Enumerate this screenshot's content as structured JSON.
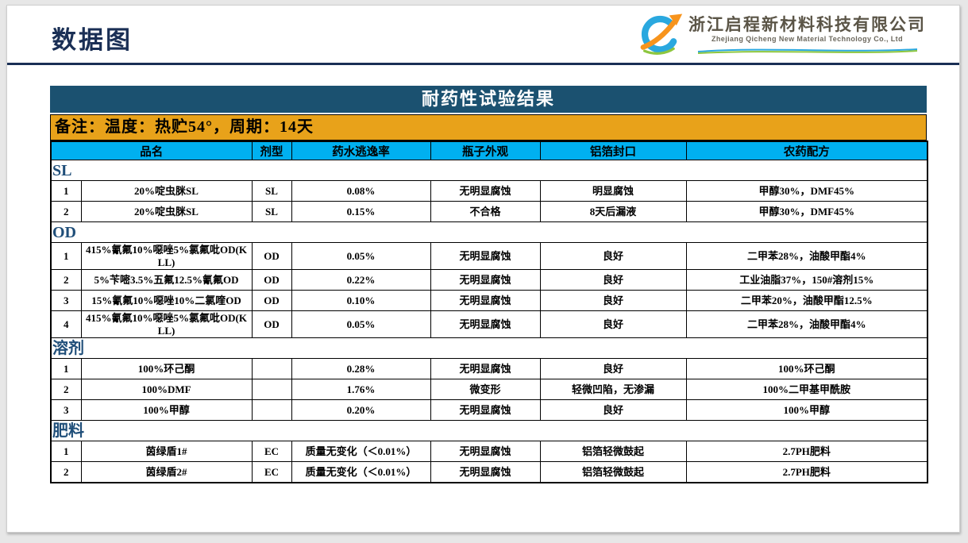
{
  "page": {
    "title": "数据图",
    "logo": {
      "icon": "qicheng-q-swoosh-logo",
      "company_cn": "浙江启程新材料科技有限公司",
      "company_en": "Zhejiang Qicheng New Material Technology Co., Ltd"
    }
  },
  "banner": {
    "title": "耐药性试验结果"
  },
  "note": {
    "text": "备注：温度：热贮54°，周期：14天"
  },
  "table": {
    "headers": [
      "品名",
      "剂型",
      "药水逃逸率",
      "瓶子外观",
      "铝箔封口",
      "农药配方"
    ],
    "sections": [
      {
        "label": "SL",
        "rows": [
          {
            "no": "1",
            "name": "20%啶虫脒SL",
            "type": "SL",
            "escape": "0.08%",
            "bottle": "无明显腐蚀",
            "seal": "明显腐蚀",
            "formula": "甲醇30%，DMF45%"
          },
          {
            "no": "2",
            "name": "20%啶虫脒SL",
            "type": "SL",
            "escape": "0.15%",
            "bottle": "不合格",
            "seal": "8天后漏液",
            "formula": "甲醇30%，DMF45%"
          }
        ]
      },
      {
        "label": "OD",
        "rows": [
          {
            "no": "1",
            "name": "415%氰氟10%噁唑5%氯氟吡OD(KLL)",
            "type": "OD",
            "escape": "0.05%",
            "bottle": "无明显腐蚀",
            "seal": "良好",
            "formula": "二甲苯28%，油酸甲酯4%"
          },
          {
            "no": "2",
            "name": "5%苄嘧3.5%五氟12.5%氰氟OD",
            "type": "OD",
            "escape": "0.22%",
            "bottle": "无明显腐蚀",
            "seal": "良好",
            "formula": "工业油脂37%，150#溶剂15%"
          },
          {
            "no": "3",
            "name": "15%氰氟10%噁唑10%二氯喹OD",
            "type": "OD",
            "escape": "0.10%",
            "bottle": "无明显腐蚀",
            "seal": "良好",
            "formula": "二甲苯20%，油酸甲酯12.5%"
          },
          {
            "no": "4",
            "name": "415%氰氟10%噁唑5%氯氟吡OD(KLL)",
            "type": "OD",
            "escape": "0.05%",
            "bottle": "无明显腐蚀",
            "seal": "良好",
            "formula": "二甲苯28%，油酸甲酯4%"
          }
        ]
      },
      {
        "label": "溶剂",
        "rows": [
          {
            "no": "1",
            "name": "100%环己酮",
            "type": "",
            "escape": "0.28%",
            "bottle": "无明显腐蚀",
            "seal": "良好",
            "formula": "100%环己酮"
          },
          {
            "no": "2",
            "name": "100%DMF",
            "type": "",
            "escape": "1.76%",
            "bottle": "微变形",
            "seal": "轻微凹陷，无渗漏",
            "formula": "100%二甲基甲酰胺"
          },
          {
            "no": "3",
            "name": "100%甲醇",
            "type": "",
            "escape": "0.20%",
            "bottle": "无明显腐蚀",
            "seal": "良好",
            "formula": "100%甲醇"
          }
        ]
      },
      {
        "label": "肥料",
        "rows": [
          {
            "no": "1",
            "name": "茵绿盾1#",
            "type": "EC",
            "escape": "质量无变化（＜0.01%）",
            "bottle": "无明显腐蚀",
            "seal": "铝箔轻微鼓起",
            "formula": "2.7PH肥料"
          },
          {
            "no": "2",
            "name": "茵绿盾2#",
            "type": "EC",
            "escape": "质量无变化（＜0.01%）",
            "bottle": "无明显腐蚀",
            "seal": "铝箔轻微鼓起",
            "formula": "2.7PH肥料"
          }
        ]
      }
    ]
  },
  "colors": {
    "banner_teal": "#1b5170",
    "note_orange": "#e8a21a",
    "header_cyan": "#00b0f0",
    "title_navy": "#1a2f55",
    "section_blue": "#1f4e79",
    "logo_blue": "#2aa8df",
    "logo_orange": "#f7941d",
    "logo_green": "#8dc63f"
  }
}
